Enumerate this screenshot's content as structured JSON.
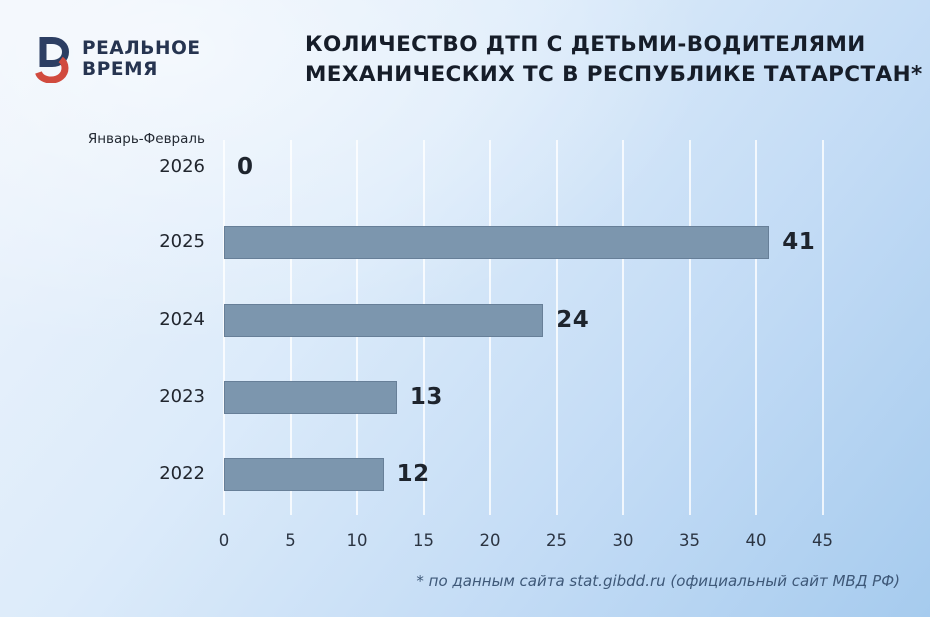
{
  "brand": {
    "line1": "РЕАЛЬНОЕ",
    "line2": "ВРЕМЯ",
    "mark_navy": "#2c3e63",
    "mark_red": "#d14a3e"
  },
  "title": {
    "line1": "КОЛИЧЕСТВО ДТП С ДЕТЬМИ-ВОДИТЕЛЯМИ",
    "line2": "МЕХАНИЧЕСКИХ ТС В РЕСПУБЛИКЕ ТАТАРСТАН*"
  },
  "footnote": "* по данным сайта stat.gibdd.ru (официальный сайт МВД РФ)",
  "chart_data": {
    "type": "bar",
    "orientation": "horizontal",
    "title": "КОЛИЧЕСТВО ДТП С ДЕТЬМИ-ВОДИТЕЛЯМИ МЕХАНИЧЕСКИХ ТС В РЕСПУБЛИКЕ ТАТАРСТАН*",
    "period_label": "Январь-Февраль",
    "categories": [
      "2026",
      "2025",
      "2024",
      "2023",
      "2022"
    ],
    "values": [
      0,
      41,
      24,
      13,
      12
    ],
    "xlabel": "",
    "ylabel": "",
    "xlim": [
      0,
      45
    ],
    "xticks": [
      0,
      5,
      10,
      15,
      20,
      25,
      30,
      35,
      40,
      45
    ],
    "grid": true,
    "legend": false,
    "bar_color": "#7c96ae",
    "background_top_left": "#eef4fc",
    "background_bottom_right": "#a6cbee",
    "source_note": "* по данным сайта stat.gibdd.ru (официальный сайт МВД РФ)"
  }
}
